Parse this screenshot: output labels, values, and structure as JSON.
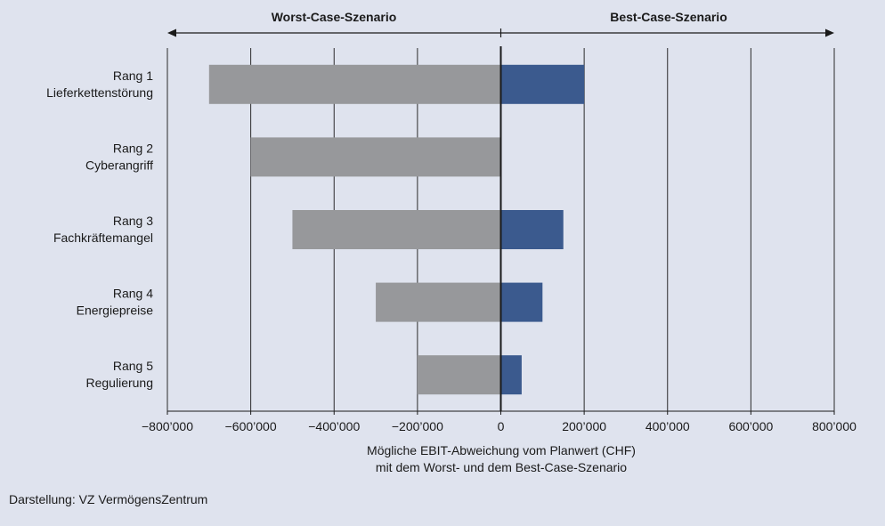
{
  "chart_data": {
    "type": "bar",
    "orientation": "horizontal",
    "header_left": "Worst-Case-Szenario",
    "header_right": "Best-Case-Szenario",
    "categories": [
      {
        "rank": "Rang 1",
        "label": "Lieferkettenstörung"
      },
      {
        "rank": "Rang 2",
        "label": "Cyberangriff"
      },
      {
        "rank": "Rang 3",
        "label": "Fachkräftemangel"
      },
      {
        "rank": "Rang 4",
        "label": "Energiepreise"
      },
      {
        "rank": "Rang 5",
        "label": "Regulierung"
      }
    ],
    "series": [
      {
        "name": "Worst-Case-Szenario",
        "color": "#97989b",
        "values": [
          -700000,
          -600000,
          -500000,
          -300000,
          -200000
        ]
      },
      {
        "name": "Best-Case-Szenario",
        "color": "#3b5a8e",
        "values": [
          200000,
          0,
          150000,
          100000,
          50000
        ]
      }
    ],
    "xlim": [
      -800000,
      800000
    ],
    "xticks": [
      -800000,
      -600000,
      -400000,
      -200000,
      0,
      200000,
      400000,
      600000,
      800000
    ],
    "xtick_labels": [
      "−800’000",
      "−600’000",
      "−400’000",
      "−200’000",
      "0",
      "200’000",
      "400’000",
      "600’000",
      "800’000"
    ],
    "xlabel_line1": "Mögliche EBIT-Abweichung vom Planwert (CHF)",
    "xlabel_line2": "mit dem Worst- und dem Best-Case-Szenario",
    "grid": true
  },
  "source": "Darstellung: VZ VermögensZentrum"
}
